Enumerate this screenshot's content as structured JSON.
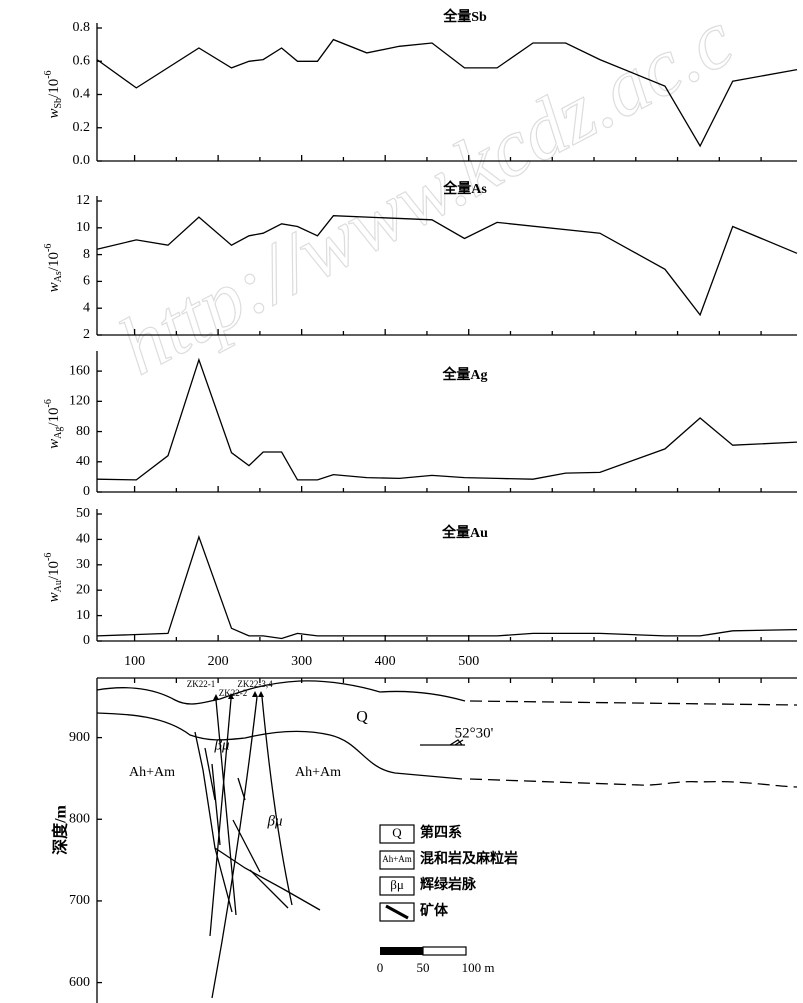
{
  "watermark": "http://www.kcdz.ac.c",
  "chart_data": [
    {
      "type": "line",
      "title": "全量Sb",
      "y_label": {
        "symbol": "w",
        "sub": "Sb",
        "unit": "/10",
        "sup": "-6"
      },
      "x": [
        55,
        102,
        177,
        216,
        237,
        254,
        276,
        295,
        319,
        338,
        378,
        417,
        456,
        495,
        534,
        577,
        616,
        657,
        735,
        777,
        816,
        893
      ],
      "values": [
        0.61,
        0.44,
        0.68,
        0.56,
        0.6,
        0.61,
        0.68,
        0.6,
        0.6,
        0.73,
        0.65,
        0.69,
        0.71,
        0.56,
        0.56,
        0.71,
        0.71,
        0.61,
        0.45,
        0.09,
        0.48,
        0.55
      ],
      "color": "#000000",
      "xlim": [
        55,
        893
      ],
      "ylim": [
        0,
        0.8
      ],
      "yticks": [
        {
          "value": 0,
          "label": "0.0"
        },
        0.2,
        0.4,
        0.6,
        0.8
      ]
    },
    {
      "type": "line",
      "title": "全量As",
      "y_label": {
        "symbol": "w",
        "sub": "As",
        "unit": "/10",
        "sup": "-6"
      },
      "x": [
        55,
        102,
        140,
        177,
        216,
        237,
        254,
        276,
        295,
        319,
        338,
        456,
        495,
        534,
        657,
        735,
        777,
        816,
        893
      ],
      "values": [
        8.4,
        9.1,
        8.7,
        10.8,
        8.7,
        9.4,
        9.6,
        10.3,
        10.1,
        9.4,
        10.9,
        10.6,
        9.2,
        10.4,
        9.6,
        6.9,
        3.5,
        10.1,
        8.1
      ],
      "color": "#000000",
      "xlim": [
        55,
        893
      ],
      "ylim": [
        2,
        12
      ],
      "yticks": [
        2,
        4,
        6,
        8,
        10,
        12
      ]
    },
    {
      "type": "line",
      "title": "全量Ag",
      "y_label": {
        "symbol": "w",
        "sub": "Ag",
        "unit": "/10",
        "sup": "-6"
      },
      "x": [
        55,
        102,
        140,
        177,
        216,
        237,
        254,
        276,
        295,
        319,
        338,
        378,
        417,
        456,
        495,
        534,
        577,
        616,
        657,
        735,
        777,
        816,
        893
      ],
      "values": [
        17,
        16,
        48,
        175,
        52,
        35,
        53,
        53,
        16,
        16,
        23,
        19,
        18,
        22,
        19,
        18,
        17,
        25,
        26,
        57,
        98,
        62,
        66
      ],
      "color": "#000000",
      "xlim": [
        55,
        893
      ],
      "ylim": [
        0,
        180
      ],
      "yticks": [
        0,
        40,
        80,
        120,
        160
      ]
    },
    {
      "type": "line",
      "title": "全量Au",
      "y_label": {
        "symbol": "w",
        "sub": "Au",
        "unit": "/10",
        "sup": "-6"
      },
      "x": [
        55,
        140,
        177,
        216,
        237,
        254,
        276,
        295,
        319,
        378,
        456,
        534,
        577,
        657,
        735,
        777,
        816,
        893
      ],
      "values": [
        2,
        3,
        41,
        5,
        2,
        2,
        1,
        3,
        2,
        2,
        2,
        2,
        3,
        3,
        2,
        2,
        4,
        4.5
      ],
      "color": "#000000",
      "xlim": [
        55,
        893
      ],
      "ylim": [
        0,
        50
      ],
      "yticks": [
        0,
        10,
        20,
        30,
        40,
        50
      ],
      "xticks": [
        100,
        200,
        300,
        400,
        500
      ],
      "xticks_minor": [
        150,
        250,
        350,
        450,
        550,
        600,
        650,
        700,
        750,
        800,
        850
      ]
    },
    {
      "type": "section",
      "y_label": "深度/m",
      "ylim": [
        575,
        973
      ],
      "yticks": [
        600,
        700,
        800,
        900
      ],
      "labels": [
        "Q",
        "52°30'",
        "Ah+Am",
        "Ah+Am",
        "βμ",
        "βμ",
        "ZK22-1",
        "ZK22-2",
        "ZK22-3,4"
      ],
      "legend": [
        {
          "symbol": "Q",
          "name": "第四系"
        },
        {
          "symbol": "Ah+Am",
          "name": "混和岩及麻粒岩"
        },
        {
          "symbol": "βμ",
          "name": "辉绿岩脉"
        },
        {
          "name": "矿体"
        }
      ],
      "scale_labels": [
        "0",
        "50",
        "100 m"
      ]
    }
  ]
}
